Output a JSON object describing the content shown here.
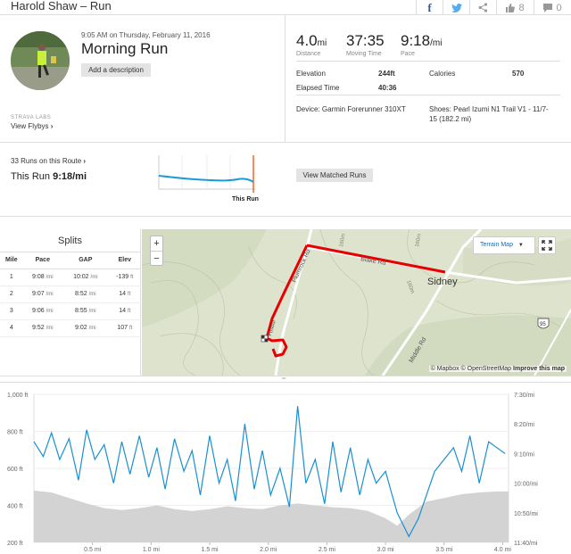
{
  "header": {
    "title": "Harold Shaw – Run",
    "kudos_count": "8",
    "comments_count": "0"
  },
  "activity": {
    "date": "9:05 AM on Thursday, February 11, 2016",
    "title": "Morning Run",
    "add_description": "Add a description",
    "strava_labs": "STRAVA LABS",
    "view_flybys": "View Flybys"
  },
  "stats": {
    "distance": {
      "value": "4.0",
      "unit": "mi",
      "label": "Distance"
    },
    "moving_time": {
      "value": "37:35",
      "label": "Moving Time"
    },
    "pace": {
      "value": "9:18",
      "unit": "/mi",
      "label": "Pace"
    },
    "elevation_label": "Elevation",
    "elevation_value": "244ft",
    "calories_label": "Calories",
    "calories_value": "570",
    "elapsed_label": "Elapsed Time",
    "elapsed_value": "40:36",
    "device": "Device: Garmin Forerunner 310XT",
    "shoes_line1": "Shoes: Pearl Izumi N1 Trail V1 - 11/7-",
    "shoes_line2": "15 (182.2 mi)"
  },
  "route": {
    "runs_on_route": "33 Runs on this Route",
    "this_run_label": "This Run",
    "this_run_value": "9:18/mi",
    "this_run_marker": "This Run",
    "view_matched": "View Matched Runs"
  },
  "splits": {
    "title": "Splits",
    "columns": [
      "Mile",
      "Pace",
      "GAP",
      "Elev"
    ],
    "unit": "/mi",
    "elev_unit": "ft",
    "rows": [
      {
        "mile": "1",
        "pace": "9:08",
        "gap": "10:02",
        "elev": "-139"
      },
      {
        "mile": "2",
        "pace": "9:07",
        "gap": "8:52",
        "elev": "14"
      },
      {
        "mile": "3",
        "pace": "9:06",
        "gap": "8:55",
        "elev": "14"
      },
      {
        "mile": "4",
        "pace": "9:52",
        "gap": "9:02",
        "elev": "107"
      }
    ]
  },
  "map": {
    "zoom_in": "+",
    "zoom_out": "−",
    "terrain_label": "Terrain Map",
    "town": "Sidney",
    "road_plumrock": "Plumrock Rd",
    "road_blake": "Blake Rd",
    "road_middle": "Middle Rd",
    "road_short": "Fosbur",
    "contour_1": "160m",
    "contour_2": "160m",
    "contour_3": "160m",
    "shield": "95",
    "attr_mapbox": "© Mapbox",
    "attr_osm": "© OpenStreetMap",
    "attr_improve": "Improve this map"
  },
  "chart_data": {
    "type": "area",
    "x_ticks": [
      "0.5 mi",
      "1.0 mi",
      "1.5 mi",
      "2.0 mi",
      "2.5 mi",
      "3.0 mi",
      "3.5 mi",
      "4.0 mi"
    ],
    "x_range": [
      0,
      4.05
    ],
    "y_left_ticks": [
      "1,000 ft",
      "800 ft",
      "600 ft",
      "400 ft",
      "200 ft"
    ],
    "y_left_range": [
      200,
      1000
    ],
    "y_right_ticks": [
      "7:30/mi",
      "8:20/mi",
      "9:10/mi",
      "10:00/mi",
      "10:50/mi",
      "11:40/mi"
    ],
    "y_right_range_sec_per_mi": [
      450,
      700
    ],
    "series": [
      {
        "kind": "elevation",
        "color": "#cccccc",
        "x": [
          0,
          0.15,
          0.3,
          0.45,
          0.6,
          0.75,
          0.9,
          1.05,
          1.2,
          1.35,
          1.5,
          1.65,
          1.8,
          1.95,
          2.1,
          2.25,
          2.4,
          2.55,
          2.7,
          2.85,
          3.0,
          3.1,
          3.2,
          3.35,
          3.5,
          3.65,
          3.8,
          3.95,
          4.05
        ],
        "values": [
          480,
          470,
          440,
          410,
          385,
          375,
          385,
          400,
          380,
          370,
          380,
          395,
          385,
          380,
          400,
          410,
          400,
          390,
          385,
          370,
          330,
          290,
          350,
          420,
          440,
          460,
          470,
          475,
          475
        ]
      },
      {
        "kind": "pace",
        "color": "#1a8fd1",
        "x": [
          0,
          0.08,
          0.15,
          0.22,
          0.3,
          0.38,
          0.45,
          0.52,
          0.6,
          0.68,
          0.75,
          0.82,
          0.9,
          0.98,
          1.05,
          1.12,
          1.2,
          1.28,
          1.35,
          1.42,
          1.5,
          1.58,
          1.65,
          1.72,
          1.8,
          1.88,
          1.95,
          2.02,
          2.1,
          2.18,
          2.25,
          2.32,
          2.4,
          2.48,
          2.55,
          2.62,
          2.7,
          2.78,
          2.85,
          2.92,
          3.0,
          3.05,
          3.1,
          3.15,
          3.2,
          3.28,
          3.35,
          3.42,
          3.5,
          3.58,
          3.65,
          3.72,
          3.8,
          3.88,
          3.95,
          4.02
        ],
        "values": [
          530,
          555,
          515,
          560,
          525,
          595,
          510,
          560,
          535,
          600,
          530,
          585,
          520,
          590,
          540,
          610,
          525,
          580,
          545,
          620,
          520,
          600,
          560,
          630,
          500,
          610,
          545,
          620,
          575,
          640,
          470,
          600,
          560,
          635,
          530,
          615,
          540,
          620,
          560,
          600,
          580,
          615,
          650,
          670,
          690,
          660,
          620,
          580,
          560,
          540,
          580,
          520,
          600,
          530,
          540,
          550
        ]
      }
    ]
  }
}
